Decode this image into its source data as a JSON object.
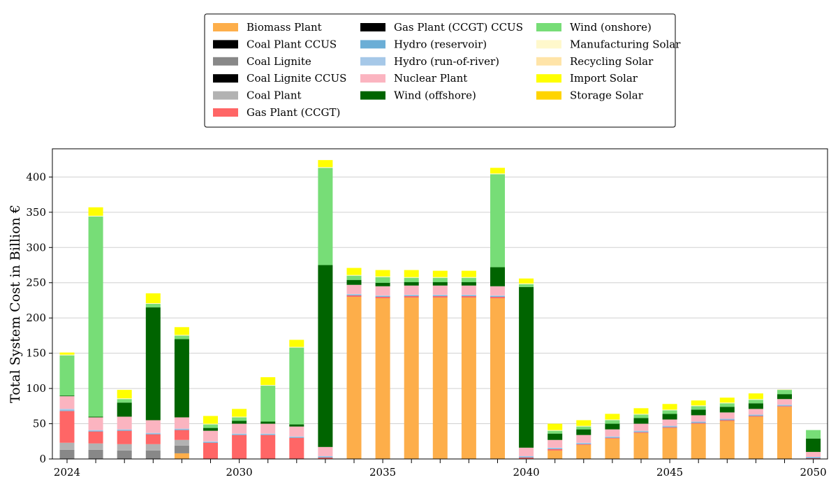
{
  "chart_data": {
    "type": "bar",
    "stacked": true,
    "ylabel": "Total System Cost in Billion €",
    "xlabel": "",
    "ylim": [
      0,
      440
    ],
    "yticks": [
      0,
      50,
      100,
      150,
      200,
      250,
      300,
      350,
      400
    ],
    "grid": "horizontal",
    "legend_position": "top-center",
    "x": [
      2024,
      2025,
      2026,
      2027,
      2028,
      2029,
      2030,
      2031,
      2032,
      2033,
      2034,
      2035,
      2036,
      2037,
      2038,
      2039,
      2040,
      2041,
      2042,
      2043,
      2044,
      2045,
      2046,
      2047,
      2048,
      2049,
      2050
    ],
    "xticks": [
      2024,
      2030,
      2035,
      2040,
      2045,
      2050
    ],
    "series": [
      {
        "name": "Biomass Plant",
        "color": "#FDAE4A",
        "values": [
          0,
          0,
          0,
          0,
          8,
          0,
          0,
          0,
          0,
          0,
          230,
          228,
          229,
          229,
          229,
          228,
          0,
          12,
          20,
          29,
          37,
          44,
          50,
          54,
          60,
          74,
          0
        ]
      },
      {
        "name": "Coal Plant CCUS",
        "color": "#000000",
        "values": [
          0,
          0,
          0,
          0,
          0,
          0,
          0,
          0,
          0,
          0,
          0,
          0,
          0,
          0,
          0,
          0,
          0,
          0,
          0,
          0,
          0,
          0,
          0,
          0,
          0,
          0,
          0
        ]
      },
      {
        "name": "Coal Lignite",
        "color": "#888888",
        "values": [
          13,
          13,
          12,
          12,
          11,
          0,
          0,
          0,
          0,
          0,
          0,
          0,
          0,
          0,
          0,
          0,
          0,
          0,
          0,
          0,
          0,
          0,
          0,
          0,
          0,
          0,
          0
        ]
      },
      {
        "name": "Coal Lignite CCUS",
        "color": "#000000",
        "values": [
          0,
          0,
          0,
          0,
          0,
          0,
          0,
          0,
          0,
          0,
          0,
          0,
          0,
          0,
          0,
          0,
          0,
          0,
          0,
          0,
          0,
          0,
          0,
          0,
          0,
          0,
          0
        ]
      },
      {
        "name": "Coal Plant",
        "color": "#B2B2B2",
        "values": [
          10,
          9,
          9,
          9,
          8,
          0,
          0,
          0,
          0,
          0,
          0,
          0,
          0,
          0,
          0,
          0,
          0,
          0,
          0,
          0,
          0,
          0,
          0,
          0,
          0,
          0,
          0
        ]
      },
      {
        "name": "Gas Plant (CCGT)",
        "color": "#FF6666",
        "values": [
          45,
          17,
          19,
          14,
          14,
          23,
          34,
          34,
          30,
          2,
          2,
          2,
          2,
          2,
          2,
          2,
          2,
          2,
          1,
          1,
          1,
          1,
          1,
          1,
          1,
          1,
          1
        ]
      },
      {
        "name": "Gas Plant (CCGT) CCUS",
        "color": "#000000",
        "values": [
          0,
          0,
          0,
          0,
          0,
          0,
          0,
          0,
          0,
          0,
          0,
          0,
          0,
          0,
          0,
          0,
          0,
          0,
          0,
          0,
          0,
          0,
          0,
          0,
          0,
          0,
          0
        ]
      },
      {
        "name": "Hydro (reservoir)",
        "color": "#6BAED6",
        "values": [
          1,
          1,
          1,
          1,
          1,
          1,
          1,
          1,
          1,
          1,
          1,
          1,
          1,
          1,
          1,
          1,
          1,
          1,
          1,
          1,
          1,
          1,
          1,
          1,
          1,
          1,
          1
        ]
      },
      {
        "name": "Hydro (run-of-river)",
        "color": "#A6C8E8",
        "values": [
          2,
          1,
          1,
          1,
          1,
          1,
          1,
          1,
          1,
          1,
          1,
          1,
          1,
          1,
          1,
          1,
          1,
          1,
          1,
          1,
          1,
          1,
          1,
          1,
          1,
          1,
          1
        ]
      },
      {
        "name": "Nuclear Plant",
        "color": "#FBB4C0",
        "values": [
          18,
          18,
          18,
          18,
          16,
          15,
          14,
          14,
          14,
          13,
          13,
          13,
          13,
          13,
          13,
          13,
          12,
          11,
          11,
          10,
          10,
          9,
          9,
          9,
          8,
          8,
          7
        ]
      },
      {
        "name": "Wind (offshore)",
        "color": "#006400",
        "values": [
          1,
          1,
          20,
          160,
          111,
          4,
          4,
          3,
          3,
          258,
          7,
          5,
          5,
          5,
          5,
          27,
          228,
          9,
          8,
          8,
          8,
          8,
          8,
          8,
          8,
          7,
          19
        ]
      },
      {
        "name": "Wind (onshore)",
        "color": "#77DD77",
        "values": [
          57,
          284,
          5,
          5,
          5,
          5,
          5,
          51,
          109,
          138,
          6,
          8,
          6,
          6,
          6,
          132,
          4,
          4,
          4,
          5,
          5,
          5,
          5,
          5,
          5,
          6,
          12
        ]
      },
      {
        "name": "Manufacturing Solar",
        "color": "#FFF8CC",
        "values": [
          1,
          1,
          1,
          1,
          1,
          1,
          1,
          1,
          1,
          1,
          1,
          1,
          1,
          1,
          1,
          1,
          1,
          1,
          1,
          1,
          1,
          1,
          1,
          1,
          1,
          1,
          0
        ]
      },
      {
        "name": "Recycling Solar",
        "color": "#FFE4A8",
        "values": [
          0,
          0,
          0,
          0,
          0,
          0,
          0,
          0,
          0,
          0,
          0,
          0,
          0,
          0,
          0,
          0,
          0,
          0,
          0,
          0,
          0,
          0,
          0,
          0,
          0,
          0,
          0
        ]
      },
      {
        "name": "Import Solar",
        "color": "#FFFF00",
        "values": [
          3,
          12,
          12,
          14,
          11,
          11,
          11,
          11,
          10,
          10,
          10,
          9,
          10,
          9,
          9,
          8,
          7,
          9,
          8,
          8,
          8,
          8,
          7,
          7,
          8,
          0,
          0
        ]
      },
      {
        "name": "Storage Solar",
        "color": "#FFD400",
        "values": [
          0,
          0,
          0,
          0,
          0,
          0,
          0,
          0,
          0,
          0,
          0,
          0,
          0,
          0,
          0,
          0,
          0,
          0,
          0,
          0,
          0,
          0,
          0,
          0,
          0,
          0,
          0
        ]
      }
    ]
  }
}
